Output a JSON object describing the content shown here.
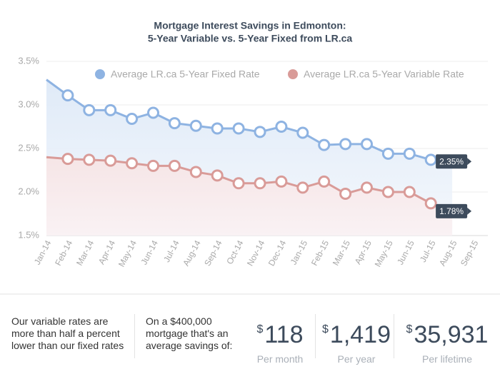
{
  "chart_data": {
    "type": "line",
    "title": "Mortgage Interest Savings in Edmonton:",
    "subtitle": "5-Year Variable vs. 5-Year Fixed from LR.ca",
    "categories": [
      "Jan-14",
      "Feb-14",
      "Mar-14",
      "Apr-14",
      "May-14",
      "Jun-14",
      "Jul-14",
      "Aug-14",
      "Sep-14",
      "Oct-14",
      "Nov-14",
      "Dec-14",
      "Jan-15",
      "Feb-15",
      "Mar-15",
      "Apr-15",
      "May-15",
      "Jun-15",
      "Jul-15",
      "Aug-15",
      "Sep-15"
    ],
    "series": [
      {
        "name": "Average LR.ca 5-Year Fixed Rate",
        "color": "#8eb3e2",
        "values": [
          3.29,
          3.11,
          2.94,
          2.94,
          2.84,
          2.91,
          2.79,
          2.76,
          2.73,
          2.73,
          2.69,
          2.75,
          2.68,
          2.54,
          2.55,
          2.55,
          2.44,
          2.44,
          2.37,
          2.35,
          null
        ],
        "value_labels": [
          null,
          null,
          null,
          null,
          null,
          null,
          null,
          null,
          null,
          null,
          null,
          null,
          null,
          null,
          null,
          null,
          null,
          null,
          null,
          "2.35%",
          null
        ]
      },
      {
        "name": "Average LR.ca 5-Year Variable Rate",
        "color": "#d99b98",
        "values": [
          2.4,
          2.38,
          2.37,
          2.36,
          2.33,
          2.3,
          2.3,
          2.23,
          2.19,
          2.1,
          2.1,
          2.12,
          2.05,
          2.12,
          1.98,
          2.05,
          2.0,
          2.0,
          1.87,
          1.78,
          null
        ],
        "value_labels": [
          null,
          null,
          null,
          null,
          null,
          null,
          null,
          null,
          null,
          null,
          null,
          null,
          null,
          null,
          null,
          null,
          null,
          null,
          null,
          "1.78%",
          null
        ]
      }
    ],
    "ylim": [
      1.5,
      3.5
    ],
    "yticks": [
      {
        "value": 1.5,
        "label": "1.5%"
      },
      {
        "value": 2.0,
        "label": "2.0%"
      },
      {
        "value": 2.5,
        "label": "2.5%"
      },
      {
        "value": 3.0,
        "label": "3.0%"
      },
      {
        "value": 3.5,
        "label": "3.5%"
      }
    ],
    "grid": true,
    "legend": "top"
  },
  "footer": {
    "note1": [
      "Our variable rates are",
      "more than half a percent",
      "lower than our fixed rates"
    ],
    "note2": [
      "On a $400,000",
      "mortgage that's an",
      "average savings of:"
    ],
    "stats": [
      {
        "currency": "$",
        "amount": "118",
        "label": "Per month"
      },
      {
        "currency": "$",
        "amount": "1,419",
        "label": "Per year"
      },
      {
        "currency": "$",
        "amount": "35,931",
        "label": "Per lifetime"
      }
    ]
  }
}
